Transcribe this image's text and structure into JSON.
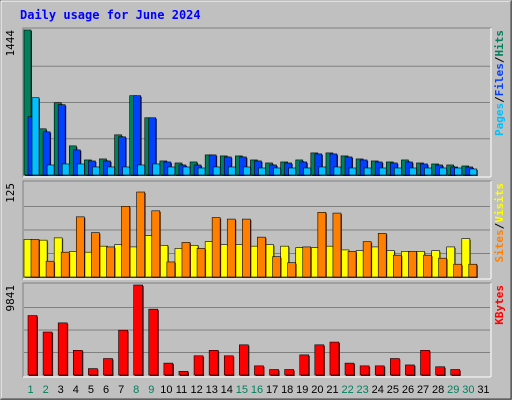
{
  "chart_data": {
    "type": "bar",
    "title": "Daily usage for June 2024",
    "colors": {
      "hits": "#00805C",
      "files": "#0040FF",
      "pages": "#00C0FF",
      "visits": "#FFFF00",
      "sites": "#FF8000",
      "kbytes": "#FF0000",
      "weekend_label": "#00805C",
      "weekday_label": "#000000",
      "title": "#0000FF"
    },
    "days": [
      "1",
      "2",
      "3",
      "4",
      "5",
      "6",
      "7",
      "8",
      "9",
      "10",
      "11",
      "12",
      "13",
      "14",
      "15",
      "16",
      "17",
      "18",
      "19",
      "20",
      "21",
      "22",
      "23",
      "24",
      "25",
      "26",
      "27",
      "28",
      "29",
      "30",
      "31"
    ],
    "weekend_days": [
      "1",
      "2",
      "8",
      "9",
      "15",
      "16",
      "22",
      "23",
      "29",
      "30"
    ],
    "panels": [
      {
        "id": "requests",
        "ymax_label": "1444",
        "ymax": 1444,
        "legend": [
          {
            "text": "Pages",
            "color": "#00C0FF"
          },
          {
            "text": "/",
            "color": "#000000"
          },
          {
            "text": "Files",
            "color": "#0040FF"
          },
          {
            "text": "/",
            "color": "#000000"
          },
          {
            "text": "Hits",
            "color": "#00805C"
          }
        ],
        "series": [
          {
            "name": "Hits",
            "color": "#00805C",
            "values": [
              1444,
              460,
              720,
              290,
              150,
              160,
              400,
              790,
              570,
              140,
              120,
              130,
              200,
              190,
              190,
              150,
              120,
              130,
              150,
              220,
              220,
              190,
              160,
              140,
              130,
              150,
              120,
              110,
              100,
              90,
              0
            ]
          },
          {
            "name": "Files",
            "color": "#0040FF",
            "values": [
              580,
              430,
              700,
              250,
              140,
              140,
              380,
              790,
              570,
              130,
              100,
              100,
              200,
              180,
              180,
              140,
              100,
              120,
              130,
              210,
              210,
              180,
              150,
              130,
              120,
              130,
              110,
              100,
              80,
              80,
              0
            ]
          },
          {
            "name": "Pages",
            "color": "#00C0FF",
            "values": [
              770,
              100,
              110,
              110,
              80,
              80,
              80,
              100,
              110,
              80,
              80,
              70,
              80,
              80,
              80,
              70,
              70,
              70,
              70,
              80,
              80,
              70,
              70,
              70,
              70,
              70,
              70,
              70,
              70,
              60,
              0
            ]
          }
        ]
      },
      {
        "id": "visitors",
        "ymax_label": "125",
        "ymax": 125,
        "legend": [
          {
            "text": "Sites",
            "color": "#FF8000"
          },
          {
            "text": "/",
            "color": "#000000"
          },
          {
            "text": "Visits",
            "color": "#FFFF00"
          }
        ],
        "series": [
          {
            "name": "Visits",
            "color": "#FFFF00",
            "values": [
              50,
              49,
              52,
              34,
              33,
              41,
              43,
              40,
              55,
              42,
              38,
              42,
              47,
              43,
              43,
              41,
              43,
              41,
              39,
              39,
              41,
              36,
              35,
              40,
              35,
              34,
              34,
              35,
              40,
              51,
              0
            ]
          },
          {
            "name": "Sites",
            "color": "#FF8000",
            "values": [
              50,
              21,
              33,
              80,
              59,
              40,
              94,
              113,
              88,
              20,
              46,
              38,
              79,
              77,
              77,
              53,
              27,
              19,
              40,
              86,
              85,
              34,
              47,
              58,
              29,
              34,
              29,
              25,
              17,
              17,
              0
            ]
          }
        ]
      },
      {
        "id": "kbytes",
        "ymax_label": "9841",
        "ymax": 9841,
        "legend": [
          {
            "text": "KBytes",
            "color": "#FF0000"
          }
        ],
        "series": [
          {
            "name": "KBytes",
            "color": "#FF0000",
            "values": [
              6500,
              4700,
              5700,
              2700,
              700,
              1800,
              4900,
              9841,
              7200,
              1300,
              400,
              2100,
              2700,
              2100,
              3300,
              1000,
              600,
              600,
              2200,
              3300,
              3600,
              1300,
              1000,
              1000,
              1800,
              1100,
              2700,
              900,
              600,
              0,
              0
            ]
          }
        ]
      }
    ]
  }
}
